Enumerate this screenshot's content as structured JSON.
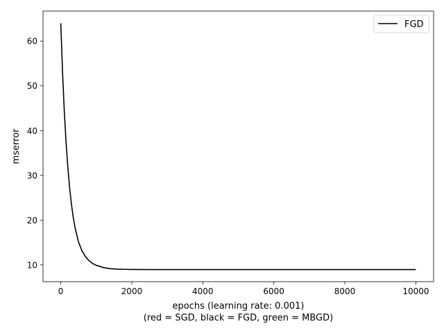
{
  "chart_data": {
    "type": "line",
    "title": "",
    "xlabel": "epochs (learning rate: 0.001)",
    "xlabel_line2": "(red = SGD, black = FGD, green = MBGD)",
    "ylabel": "mserror",
    "xlim": [
      -500,
      10500
    ],
    "ylim": [
      6.25,
      66.7
    ],
    "xticks": [
      0,
      2000,
      4000,
      6000,
      8000,
      10000
    ],
    "yticks": [
      10,
      20,
      30,
      40,
      50,
      60
    ],
    "grid": false,
    "legend_position": "top-right",
    "series": [
      {
        "name": "FGD",
        "color": "#000000",
        "x": [
          0,
          50,
          100,
          150,
          200,
          250,
          300,
          350,
          400,
          500,
          600,
          700,
          800,
          900,
          1000,
          1200,
          1400,
          1600,
          1800,
          2000,
          2500,
          3000,
          4000,
          5000,
          6000,
          7000,
          8000,
          9000,
          10000
        ],
        "y": [
          64.0,
          53.1,
          44.2,
          37.3,
          31.7,
          27.2,
          23.6,
          20.7,
          18.4,
          15.1,
          13.1,
          11.8,
          10.9,
          10.3,
          9.9,
          9.4,
          9.15,
          9.05,
          9.0,
          8.98,
          8.95,
          8.95,
          8.95,
          8.95,
          8.95,
          8.95,
          8.95,
          8.95,
          8.95
        ]
      }
    ]
  }
}
